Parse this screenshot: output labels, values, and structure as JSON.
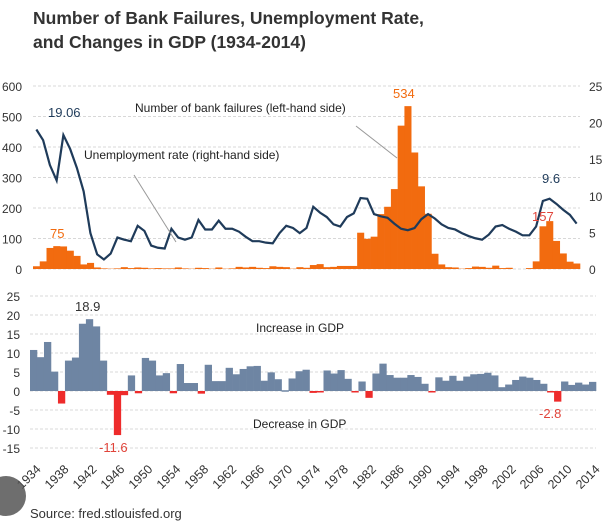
{
  "chart_data": [
    {
      "type": "bar+line",
      "title_line1": "Number of Bank Failures, Unemployment Rate,",
      "title_line2": "and Changes in GDP (1934-2014)",
      "years_start": 1934,
      "left_axis": {
        "ylim": [
          0,
          600
        ],
        "ticks": [
          "0",
          "100",
          "200",
          "300",
          "400",
          "500",
          "600"
        ]
      },
      "right_axis": {
        "ylim": [
          0,
          25
        ],
        "ticks": [
          "0",
          "5",
          "10",
          "15",
          "20",
          "25"
        ]
      },
      "series": [
        {
          "name": "Number of bank failures (left-hand side)",
          "type": "bar",
          "color": "#f26b0f",
          "values": [
            9,
            25,
            69,
            75,
            74,
            60,
            43,
            15,
            20,
            5,
            2,
            1,
            2,
            6,
            3,
            5,
            4,
            2,
            3,
            2,
            2,
            5,
            2,
            1,
            4,
            3,
            1,
            5,
            1,
            2,
            7,
            5,
            7,
            4,
            3,
            9,
            7,
            6,
            1,
            6,
            4,
            13,
            16,
            6,
            7,
            10,
            10,
            10,
            119,
            99,
            106,
            180,
            204,
            262,
            470,
            534,
            382,
            271,
            181,
            50,
            15,
            6,
            5,
            1,
            3,
            8,
            7,
            4,
            11,
            3,
            4,
            0,
            0,
            3,
            25,
            140,
            157,
            92,
            51,
            24,
            18
          ]
        },
        {
          "name": "Unemployment rate (right-hand side)",
          "type": "line",
          "color": "#1f3b5a",
          "values": [
            19.06,
            17.6,
            14.2,
            12.1,
            18.3,
            16.4,
            13.8,
            10.6,
            4.9,
            2.0,
            1.3,
            2.1,
            4.3,
            4.0,
            3.8,
            5.9,
            5.2,
            3.2,
            2.9,
            2.8,
            5.5,
            4.3,
            4.0,
            4.3,
            6.7,
            5.4,
            5.4,
            6.6,
            5.5,
            5.5,
            5.1,
            4.4,
            3.8,
            3.8,
            3.6,
            3.5,
            4.9,
            5.9,
            5.6,
            4.9,
            5.6,
            8.5,
            7.7,
            7.1,
            6.1,
            5.8,
            7.1,
            7.6,
            9.7,
            9.6,
            7.5,
            7.2,
            7.0,
            6.2,
            5.5,
            5.3,
            5.6,
            6.8,
            7.5,
            6.9,
            6.1,
            5.6,
            5.4,
            4.9,
            4.5,
            4.2,
            4.0,
            4.7,
            5.8,
            6.0,
            5.5,
            5.1,
            4.6,
            4.6,
            5.8,
            9.3,
            9.6,
            8.9,
            8.1,
            7.4,
            6.2
          ]
        }
      ],
      "data_labels": {
        "peak_unemployment": "19.06",
        "early_failures": "75",
        "peak_failures": "534",
        "recent_unemployment": "9.6",
        "recent_failures": "157"
      }
    },
    {
      "type": "bar",
      "ylim": [
        -15,
        25
      ],
      "ticks": [
        "25",
        "20",
        "15",
        "10",
        "5",
        "0",
        "-5",
        "-10",
        "-15"
      ],
      "colors": {
        "positive": "#6e85a3",
        "negative": "#ee2b2b"
      },
      "series": [
        {
          "name": "Change in GDP",
          "values": [
            10.8,
            8.9,
            12.9,
            5.1,
            -3.3,
            8.0,
            8.8,
            17.7,
            18.9,
            17.0,
            8.0,
            -1.0,
            -11.6,
            -1.1,
            4.1,
            -0.6,
            8.7,
            8.0,
            4.1,
            4.7,
            -0.6,
            7.1,
            2.1,
            2.1,
            -0.7,
            6.9,
            2.6,
            2.6,
            6.1,
            4.4,
            5.8,
            6.5,
            6.6,
            2.7,
            4.9,
            3.1,
            0.2,
            3.3,
            5.2,
            5.6,
            -0.5,
            -0.2,
            5.4,
            4.6,
            5.5,
            3.2,
            -0.3,
            2.5,
            -1.8,
            4.6,
            7.2,
            4.2,
            3.5,
            3.5,
            4.2,
            3.7,
            1.9,
            -0.1,
            3.6,
            2.7,
            4.0,
            2.7,
            3.8,
            4.4,
            4.5,
            4.8,
            4.1,
            1.0,
            1.7,
            2.9,
            3.8,
            3.5,
            2.9,
            1.9,
            -0.1,
            -2.8,
            2.5,
            1.6,
            2.2,
            1.7,
            2.4
          ]
        }
      ],
      "x_tick_labels": [
        "1934",
        "1938",
        "1942",
        "1946",
        "1950",
        "1954",
        "1958",
        "1962",
        "1966",
        "1970",
        "1974",
        "1978",
        "1982",
        "1986",
        "1990",
        "1994",
        "1998",
        "2002",
        "2006",
        "2010",
        "2014"
      ],
      "annotations": {
        "increase": "Increase in GDP",
        "decrease": "Decrease in GDP",
        "max": "18.9",
        "min": "-11.6",
        "recent_min": "-2.8"
      }
    }
  ],
  "source": "Source: fred.stlouisfed.org"
}
